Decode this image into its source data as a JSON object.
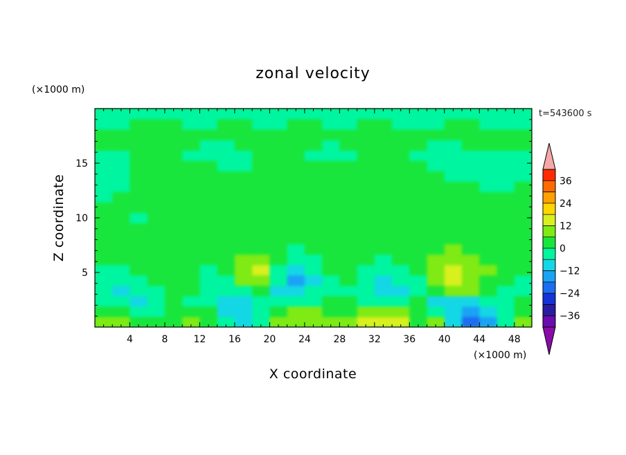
{
  "chart_data": {
    "type": "heatmap",
    "title": "zonal velocity",
    "xlabel": "X coordinate",
    "ylabel": "Z coordinate",
    "x_unit": "(×1000 m)",
    "y_unit": "(×1000 m)",
    "time_label": "t=543600 s",
    "xlim": [
      0,
      50
    ],
    "ylim": [
      0,
      20
    ],
    "x_ticks": [
      4,
      8,
      12,
      16,
      20,
      24,
      28,
      32,
      36,
      40,
      44,
      48
    ],
    "y_ticks": [
      5,
      10,
      15
    ],
    "colorbar": {
      "levels": [
        -42,
        -36,
        -30,
        -24,
        -18,
        -12,
        -6,
        0,
        6,
        12,
        18,
        24,
        30,
        36,
        42
      ],
      "tick_labels": [
        36,
        24,
        12,
        0,
        -12,
        -24,
        -36
      ],
      "colors": [
        "#6a0dad",
        "#2a1ca0",
        "#1533d6",
        "#1e6cf0",
        "#1aa3f5",
        "#14d7e6",
        "#00f5a0",
        "#19e63c",
        "#7fea14",
        "#d7f01e",
        "#ffd700",
        "#ffa000",
        "#ff6a00",
        "#ff2a00"
      ],
      "under_color": "#8a0ca8",
      "over_color": "#f4a8a8",
      "extend": "both"
    },
    "grid": false,
    "z": [
      [
        10,
        8,
        3,
        1,
        2,
        10,
        4,
        -6,
        -8,
        -3,
        10,
        11,
        9,
        6,
        6,
        14,
        15,
        13,
        5,
        8,
        -8,
        -20,
        -16,
        -4,
        8
      ],
      [
        4,
        3,
        -2,
        -3,
        1,
        4,
        0,
        -9,
        -10,
        -4,
        5,
        6,
        6,
        5,
        4,
        9,
        10,
        8,
        3,
        -3,
        -12,
        -14,
        -10,
        -2,
        4
      ],
      [
        -2,
        -6,
        -9,
        -5,
        1,
        -2,
        -4,
        -8,
        -9,
        -6,
        -2,
        -4,
        -3,
        1,
        0,
        -3,
        -6,
        -3,
        1,
        -7,
        -9,
        -8,
        -4,
        -2,
        0
      ],
      [
        -4,
        -8,
        -6,
        -3,
        2,
        1,
        -2,
        -5,
        -2,
        2,
        -9,
        -10,
        -5,
        -3,
        -2,
        -6,
        -10,
        -7,
        -3,
        4,
        8,
        6,
        2,
        -1,
        -2
      ],
      [
        -3,
        -5,
        -2,
        4,
        2,
        2,
        -3,
        -2,
        8,
        10,
        -2,
        -13,
        -7,
        -2,
        1,
        -4,
        -8,
        -4,
        -1,
        8,
        12,
        10,
        5,
        1,
        -1
      ],
      [
        -1,
        -2,
        2,
        4,
        2,
        3,
        -1,
        1,
        10,
        12,
        -1,
        -12,
        -4,
        3,
        2,
        -2,
        -5,
        -2,
        1,
        9,
        13,
        11,
        6,
        2,
        0
      ],
      [
        1,
        0,
        3,
        2,
        1,
        2,
        2,
        3,
        7,
        8,
        2,
        -6,
        -3,
        3,
        2,
        1,
        -3,
        0,
        2,
        7,
        10,
        9,
        5,
        2,
        1
      ],
      [
        2,
        1,
        2,
        2,
        3,
        2,
        3,
        4,
        4,
        5,
        3,
        -1,
        1,
        2,
        2,
        2,
        2,
        3,
        2,
        5,
        6,
        5,
        4,
        2,
        2
      ],
      [
        3,
        2,
        2,
        3,
        3,
        2,
        3,
        3,
        2,
        3,
        2,
        1,
        2,
        2,
        2,
        3,
        2,
        2,
        3,
        2,
        3,
        3,
        2,
        2,
        3
      ],
      [
        1,
        2,
        3,
        2,
        1,
        3,
        2,
        3,
        4,
        2,
        3,
        2,
        3,
        2,
        1,
        3,
        2,
        3,
        2,
        2,
        1,
        2,
        3,
        2,
        1
      ],
      [
        2,
        1,
        -1,
        2,
        3,
        1,
        2,
        4,
        3,
        2,
        2,
        3,
        2,
        1,
        2,
        2,
        3,
        2,
        1,
        3,
        2,
        2,
        1,
        3,
        2
      ],
      [
        3,
        2,
        2,
        1,
        2,
        2,
        3,
        2,
        2,
        3,
        1,
        2,
        2,
        3,
        2,
        1,
        2,
        3,
        2,
        2,
        3,
        2,
        2,
        2,
        3
      ],
      [
        -1,
        1,
        2,
        2,
        1,
        2,
        2,
        3,
        2,
        2,
        3,
        1,
        2,
        2,
        3,
        2,
        1,
        2,
        2,
        3,
        2,
        1,
        2,
        1,
        1
      ],
      [
        -1,
        -1,
        1,
        2,
        2,
        3,
        2,
        2,
        2,
        1,
        2,
        2,
        3,
        2,
        2,
        2,
        2,
        1,
        2,
        2,
        2,
        1,
        -1,
        -1,
        1
      ],
      [
        -1,
        -2,
        1,
        2,
        3,
        2,
        2,
        1,
        2,
        2,
        2,
        3,
        2,
        1,
        2,
        2,
        3,
        2,
        2,
        1,
        -1,
        -2,
        -1,
        -1,
        -1
      ],
      [
        -2,
        -1,
        1,
        2,
        2,
        1,
        2,
        -1,
        -1,
        1,
        2,
        2,
        1,
        2,
        2,
        1,
        1,
        2,
        1,
        -1,
        -2,
        -2,
        -1,
        -2,
        -2
      ],
      [
        -1,
        -1,
        2,
        2,
        1,
        -1,
        -2,
        -1,
        -1,
        1,
        2,
        1,
        -1,
        -1,
        -1,
        1,
        2,
        1,
        -1,
        -2,
        -1,
        -1,
        -2,
        -1,
        -1
      ],
      [
        1,
        1,
        2,
        3,
        2,
        1,
        -1,
        -1,
        1,
        2,
        2,
        1,
        1,
        -1,
        1,
        2,
        2,
        1,
        1,
        -1,
        -1,
        1,
        1,
        2,
        2
      ],
      [
        2,
        3,
        3,
        2,
        2,
        2,
        2,
        2,
        2,
        3,
        2,
        2,
        2,
        2,
        2,
        3,
        2,
        2,
        2,
        1,
        1,
        2,
        2,
        3,
        3
      ],
      [
        -1,
        -1,
        1,
        1,
        1,
        -1,
        -1,
        1,
        1,
        -1,
        -1,
        1,
        1,
        -1,
        -1,
        1,
        1,
        -1,
        -1,
        -1,
        1,
        1,
        -1,
        -1,
        -1
      ],
      [
        -1,
        -1,
        -1,
        -1,
        -1,
        -1,
        -1,
        -1,
        -1,
        -1,
        -1,
        -1,
        -1,
        -1,
        -1,
        -1,
        -1,
        -1,
        -1,
        -1,
        -1,
        -1,
        -1,
        -1,
        -1
      ]
    ]
  }
}
